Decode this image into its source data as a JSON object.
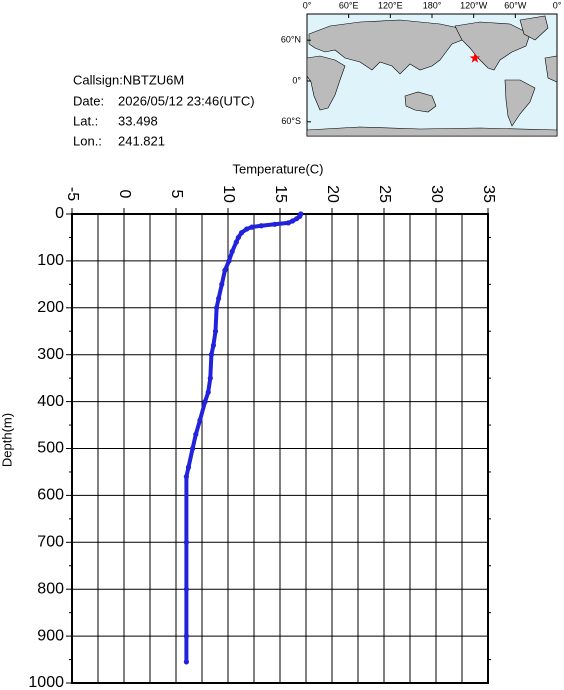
{
  "info": {
    "callsign": "Callsign:NBTZU6M",
    "date_label": "Date:",
    "date": "2026/05/12 23:46(UTC)",
    "lat_label": "Lat.:",
    "lat": 33.498,
    "lon_label": "Lon.:",
    "lon": 241.821
  },
  "map": {
    "lon_ticks": [
      {
        "value": 0,
        "label": "0°"
      },
      {
        "value": 60,
        "label": "60°E"
      },
      {
        "value": 120,
        "label": "120°E"
      },
      {
        "value": 180,
        "label": "180°"
      },
      {
        "value": 240,
        "label": "120°W"
      },
      {
        "value": 300,
        "label": "60°W"
      },
      {
        "value": 360,
        "label": "0°"
      }
    ],
    "lat_ticks": [
      {
        "value": 60,
        "label": "60°N"
      },
      {
        "value": 0,
        "label": "0°"
      },
      {
        "value": -60,
        "label": "60°S"
      }
    ],
    "marker_color": "#ff0000"
  },
  "chart_data": {
    "type": "line",
    "xlabel": "Temperature(C)",
    "ylabel": "Depth(m)",
    "x": [
      17.0,
      16.9,
      16.6,
      16.2,
      15.8,
      14.5,
      13.2,
      12.3,
      11.8,
      11.3,
      11.0,
      10.8,
      10.4,
      10.1,
      9.7,
      9.4,
      9.1,
      8.9,
      8.8,
      8.6,
      8.4,
      8.3,
      8.1,
      7.8,
      7.3,
      6.9,
      6.6,
      6.2,
      6.0,
      6.0,
      6.0,
      6.0,
      6.0
    ],
    "values": [
      0,
      5,
      10,
      15,
      19,
      22,
      25,
      28,
      32,
      40,
      50,
      60,
      80,
      100,
      120,
      150,
      180,
      200,
      250,
      280,
      300,
      350,
      380,
      400,
      440,
      470,
      500,
      540,
      560,
      700,
      800,
      900,
      955
    ],
    "color": "#2222dd",
    "xlim": [
      -5,
      35
    ],
    "xticks": [
      -5,
      0,
      5,
      10,
      15,
      20,
      25,
      30,
      35
    ],
    "xminorticks": [
      -2.5,
      2.5,
      7.5,
      12.5,
      17.5,
      22.5,
      27.5,
      32.5
    ],
    "ylim": [
      0,
      1000
    ],
    "y_inverted": true,
    "yticks": [
      0,
      100,
      200,
      300,
      400,
      500,
      600,
      700,
      800,
      900,
      1000
    ],
    "yminorticks": [
      50,
      150,
      250,
      350,
      450,
      550,
      650,
      750,
      850,
      950
    ],
    "grid": true
  }
}
